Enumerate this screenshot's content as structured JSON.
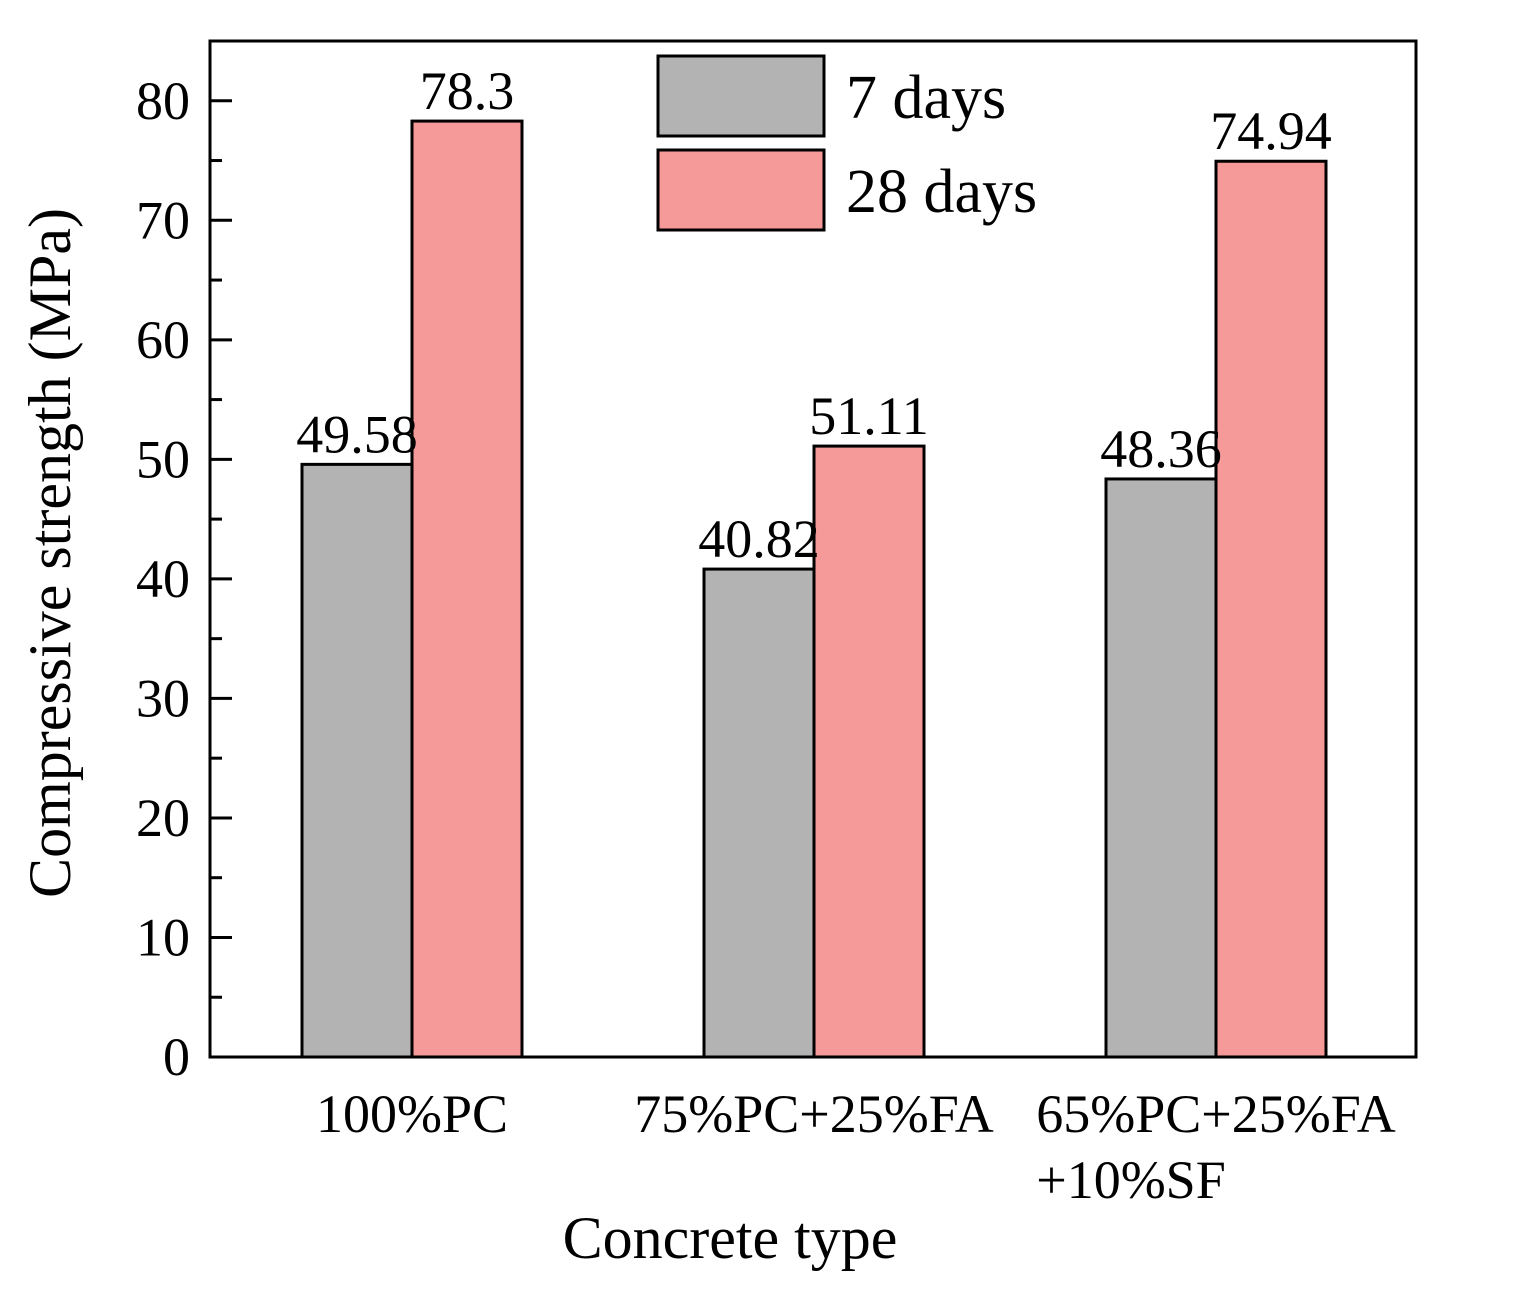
{
  "chart_data": {
    "type": "bar",
    "title": "",
    "xlabel": "Concrete type",
    "ylabel": "Compressive strength (MPa)",
    "ylim": [
      0,
      85
    ],
    "yticks": [
      0,
      10,
      20,
      30,
      40,
      50,
      60,
      70,
      80
    ],
    "grid": false,
    "legend_position": "top-center",
    "categories": [
      [
        "100%PC"
      ],
      [
        "75%PC+25%FA"
      ],
      [
        "65%PC+25%FA",
        "+10%SF"
      ]
    ],
    "series": [
      {
        "name": "7 days",
        "color": "#b3b3b3",
        "values": [
          49.58,
          40.82,
          48.36
        ],
        "labels": [
          "49.58",
          "40.82",
          "48.36"
        ]
      },
      {
        "name": "28 days",
        "color": "#f59999",
        "values": [
          78.3,
          51.11,
          74.94
        ],
        "labels": [
          "78.3",
          "51.11",
          "74.94"
        ]
      }
    ]
  }
}
